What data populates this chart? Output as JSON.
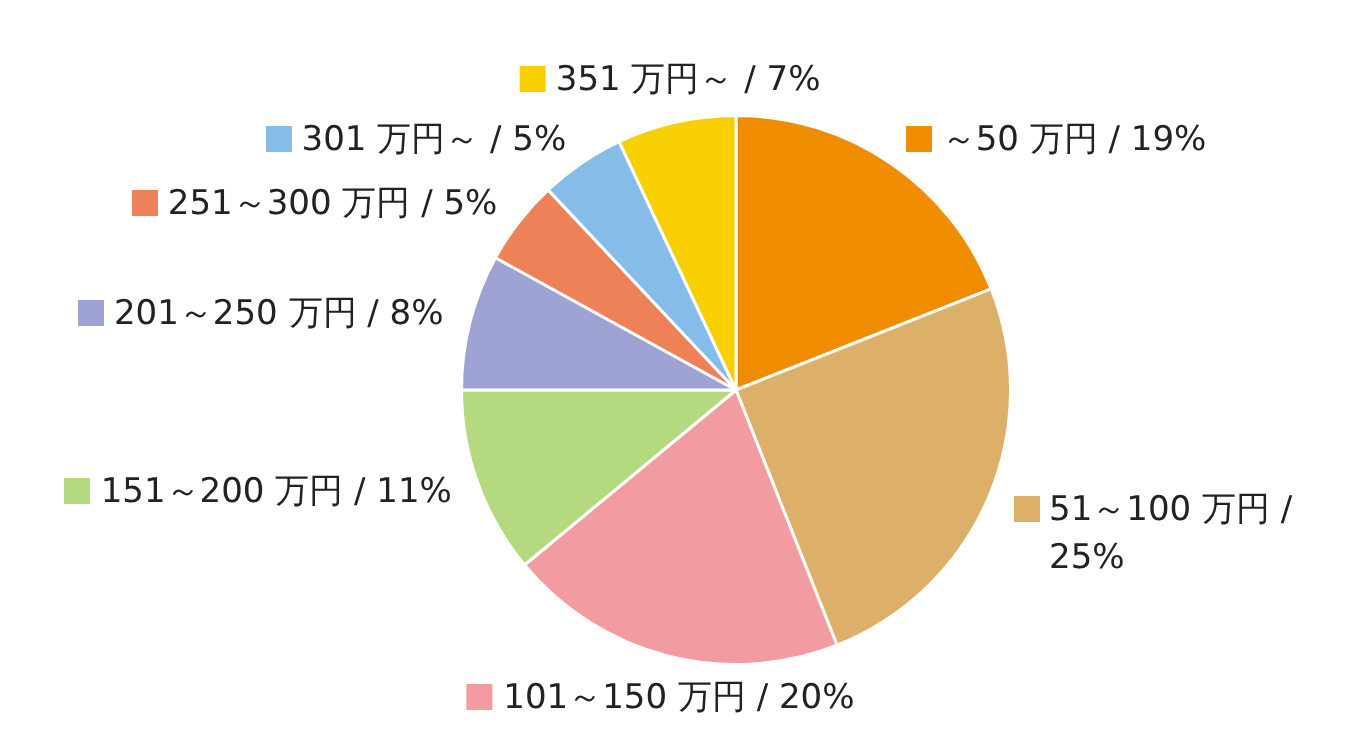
{
  "chart_data": {
    "type": "pie",
    "categories": [
      "～50 万円",
      "51～100 万円",
      "101～150 万円",
      "151～200 万円",
      "201～250 万円",
      "251～300 万円",
      "301 万円～",
      "351 万円～"
    ],
    "values": [
      19,
      25,
      20,
      11,
      8,
      5,
      5,
      7
    ],
    "value_labels": [
      "/ 19%",
      "/ 25%",
      "/ 20%",
      "/ 11%",
      "/ 8%",
      "/ 5%",
      "/ 5%",
      "/ 7%"
    ],
    "legend": "top left",
    "colors": [
      "#f08c00",
      "#ddb06a",
      "#f29ba0",
      "#b5d97f",
      "#9fa3d4",
      "#ee8158",
      "#86bde8",
      "#f8cf00"
    ]
  }
}
